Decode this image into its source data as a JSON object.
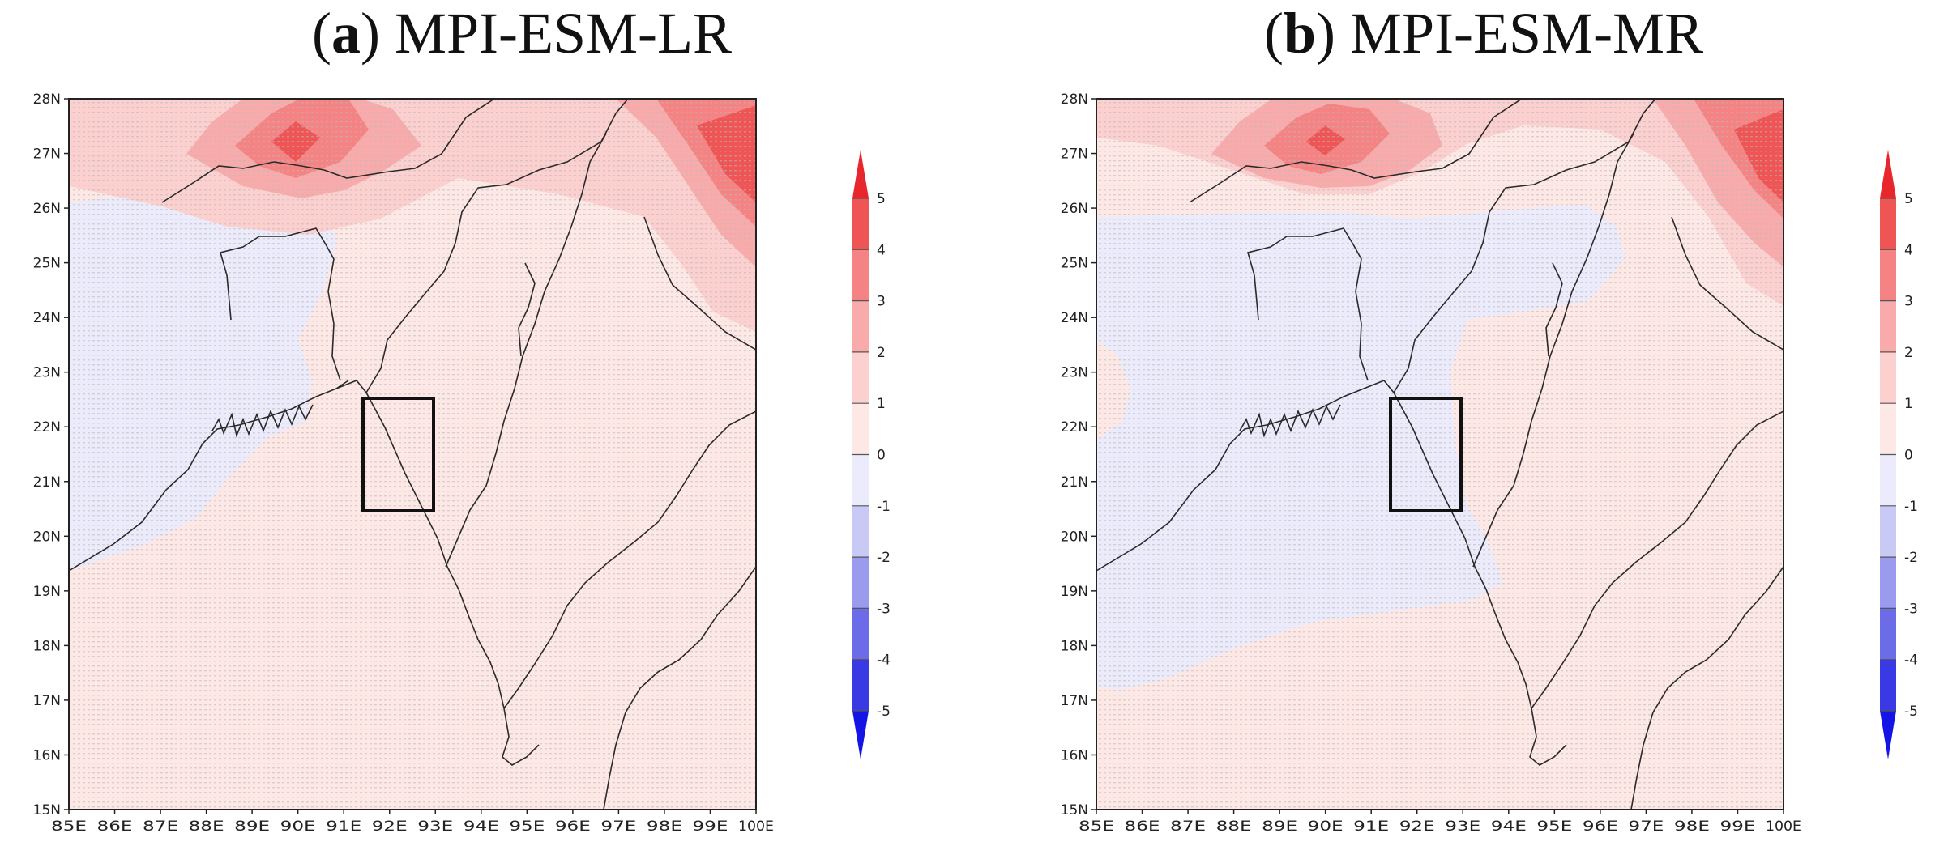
{
  "panels": [
    {
      "letter": "a",
      "title": "MPI-ESM-LR"
    },
    {
      "letter": "b",
      "title": "MPI-ESM-MR"
    }
  ],
  "lon_labels": [
    "85E",
    "86E",
    "87E",
    "88E",
    "89E",
    "90E",
    "91E",
    "92E",
    "93E",
    "94E",
    "95E",
    "96E",
    "97E",
    "98E",
    "99E",
    "100E"
  ],
  "lat_labels": [
    "28N",
    "27N",
    "26N",
    "25N",
    "24N",
    "23N",
    "22N",
    "21N",
    "20N",
    "19N",
    "18N",
    "17N",
    "16N",
    "15N"
  ],
  "colorbar": {
    "labels": [
      "5",
      "4",
      "3",
      "2",
      "1",
      "0",
      "-1",
      "-2",
      "-3",
      "-4",
      "-5"
    ],
    "colors": [
      "#e8272c",
      "#ef5555",
      "#f58383",
      "#f9abab",
      "#fcd0cf",
      "#fde8e6",
      "#ebebfb",
      "#c9c9f5",
      "#9a9aee",
      "#6c6ce8",
      "#3a3ae4",
      "#1414e6"
    ]
  },
  "study_box": {
    "lon_min": 91.5,
    "lon_max": 93.0,
    "lat_min": 20.5,
    "lat_max": 22.5
  }
}
